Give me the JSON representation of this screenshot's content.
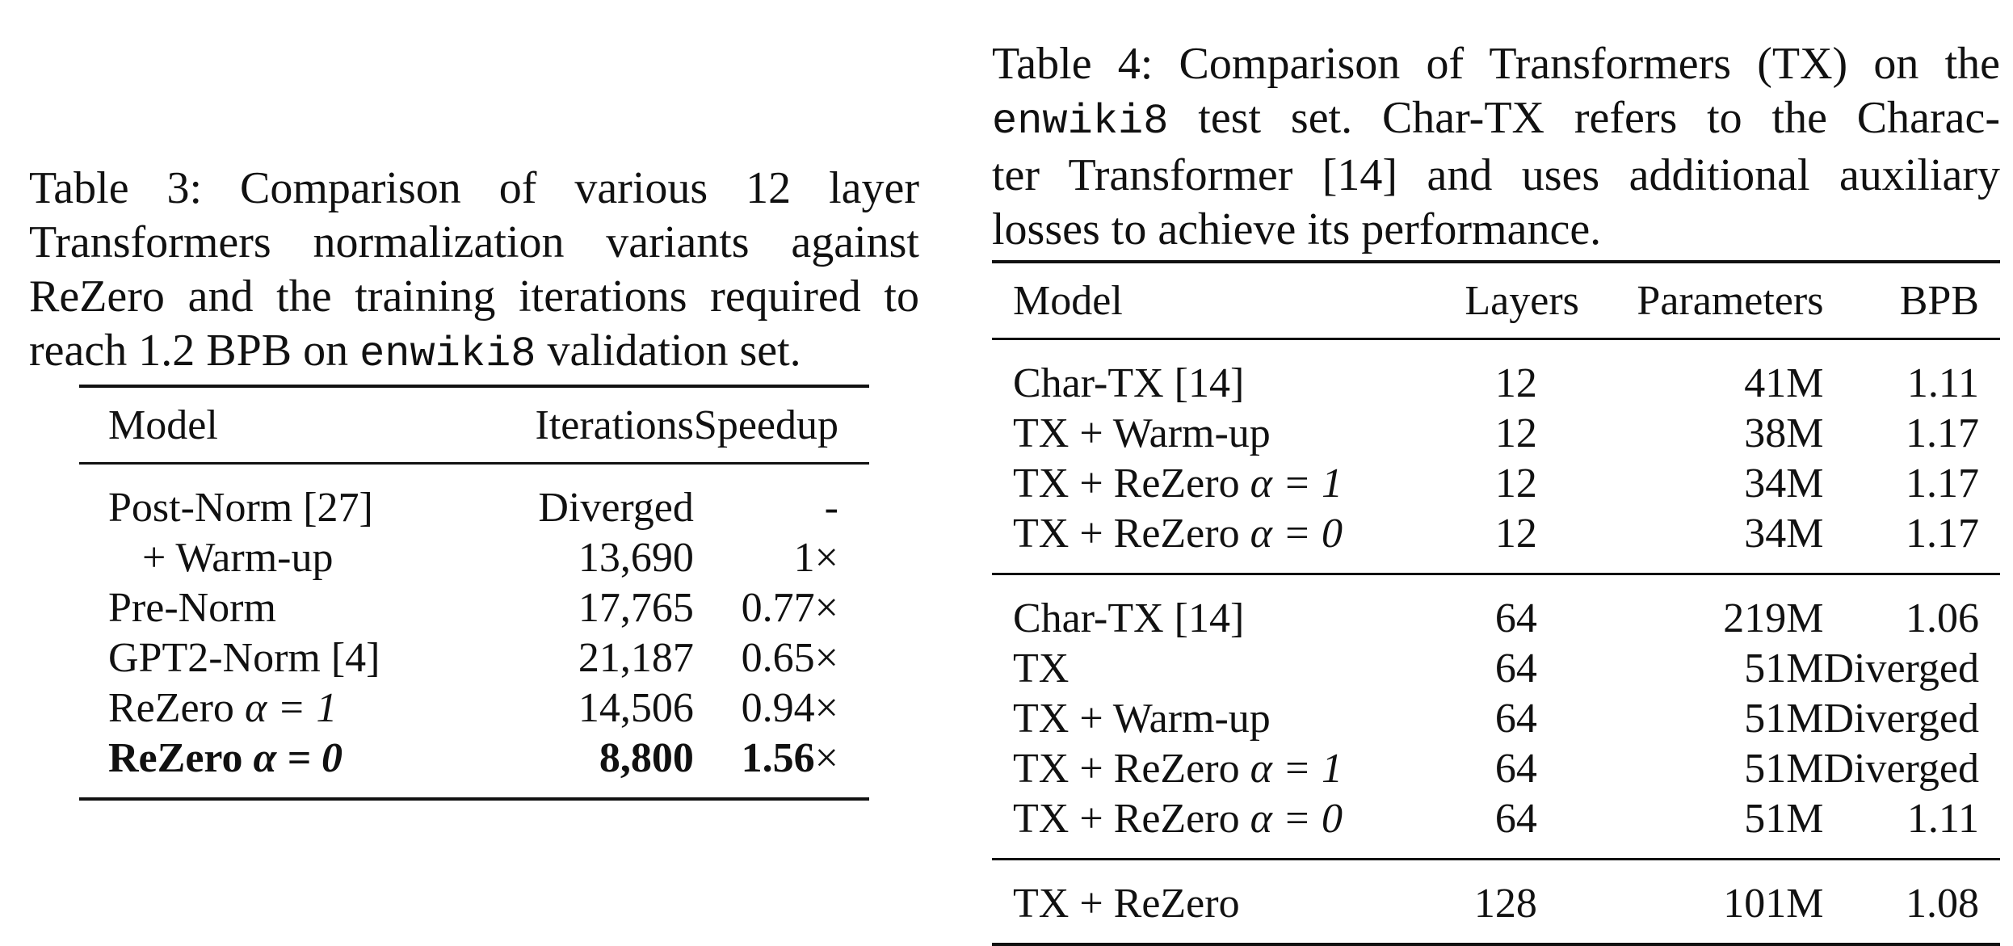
{
  "table3": {
    "caption_lines": [
      "Table 3:  Comparison of various 12 layer",
      "Transformers normalization variants against",
      "ReZero and the training iterations required to"
    ],
    "caption_last_pre": "reach 1.2 BPB on ",
    "caption_last_mono": "enwiki8",
    "caption_last_post": " validation set.",
    "headers": [
      "Model",
      "Iterations",
      "Speedup"
    ],
    "rows": [
      {
        "model": "Post-Norm [27]",
        "iterations": "Diverged",
        "speedup": "-"
      },
      {
        "model": "+ Warm-up",
        "iterations": "13,690",
        "speedup": "1×"
      },
      {
        "model": "Pre-Norm",
        "iterations": "17,765",
        "speedup": "0.77×"
      },
      {
        "model": "GPT2-Norm [4]",
        "iterations": "21,187",
        "speedup": "0.65×"
      },
      {
        "model_pre": "ReZero ",
        "model_math": "α = 1",
        "iterations": "14,506",
        "speedup": "0.94×"
      },
      {
        "model_pre": "ReZero ",
        "model_math": "α = 0",
        "iterations": "8,800",
        "speedup": "1.56",
        "speedup_suffix": "×"
      }
    ]
  },
  "table4": {
    "caption_line1": "Table 4: Comparison of Transformers (TX) on the",
    "caption_line2_mono": "enwiki8",
    "caption_line2_post": " test set.  Char-TX refers to the Charac-",
    "caption_line3": "ter Transformer [14] and uses additional auxiliary",
    "caption_line4": "losses to achieve its performance.",
    "headers": [
      "Model",
      "Layers",
      "Parameters",
      "BPB"
    ],
    "group1": [
      {
        "model": "Char-TX [14]",
        "layers": "12",
        "params": "41M",
        "bpb": "1.11"
      },
      {
        "model": "TX + Warm-up",
        "layers": "12",
        "params": "38M",
        "bpb": "1.17"
      },
      {
        "model_pre": "TX + ReZero ",
        "model_math": "α = 1",
        "layers": "12",
        "params": "34M",
        "bpb": "1.17"
      },
      {
        "model_pre": "TX + ReZero ",
        "model_math": "α = 0",
        "layers": "12",
        "params": "34M",
        "bpb": "1.17"
      }
    ],
    "group2": [
      {
        "model": "Char-TX [14]",
        "layers": "64",
        "params": "219M",
        "bpb": "1.06"
      },
      {
        "model": "TX",
        "layers": "64",
        "params": "51M",
        "bpb": "Diverged"
      },
      {
        "model": "TX + Warm-up",
        "layers": "64",
        "params": "51M",
        "bpb": "Diverged"
      },
      {
        "model_pre": "TX + ReZero ",
        "model_math": "α = 1",
        "layers": "64",
        "params": "51M",
        "bpb": "Diverged"
      },
      {
        "model_pre": "TX + ReZero ",
        "model_math": "α = 0",
        "layers": "64",
        "params": "51M",
        "bpb": "1.11"
      }
    ],
    "group3": [
      {
        "model": "TX + ReZero",
        "layers": "128",
        "params": "101M",
        "bpb": "1.08"
      }
    ]
  }
}
